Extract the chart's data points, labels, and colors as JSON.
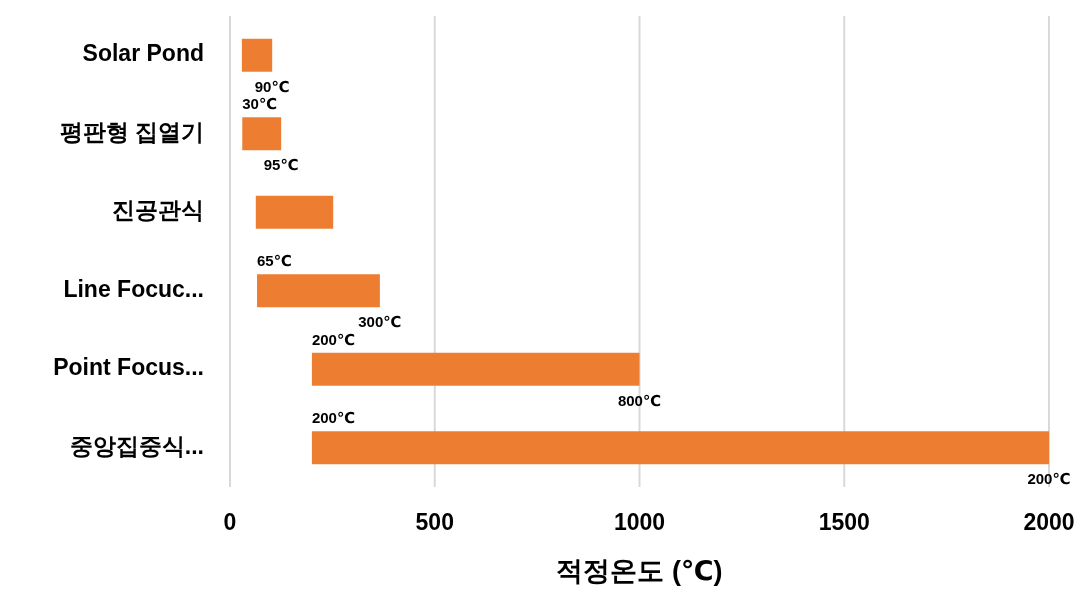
{
  "chart_data": {
    "type": "bar",
    "orientation": "horizontal",
    "xlabel": "적정온도 (℃)",
    "categories": [
      "Solar Pond",
      "평판형 집열기",
      "진공관식",
      "Line Focuc...",
      "Point Focus...",
      "중앙집중식..."
    ],
    "base": [
      29,
      30,
      63,
      66,
      200,
      200
    ],
    "values": [
      74,
      95,
      189,
      300,
      800,
      1800
    ],
    "color": "#ed7d31",
    "xlim": [
      0,
      2000
    ],
    "xticks": [
      0,
      500,
      1000,
      1500,
      2000
    ],
    "grid": "x",
    "annotations": [
      {
        "text": "90℃",
        "x": 103,
        "y": "Solar Pond"
      },
      {
        "text": "30℃",
        "x": 30,
        "y": "평판형 집열기"
      },
      {
        "text": "95℃",
        "x": 125,
        "y": "평판형 집열기"
      },
      {
        "text": "65℃",
        "x": 66,
        "y": "Line Focuc..."
      },
      {
        "text": "300℃",
        "x": 366,
        "y": "Line Focuc..."
      },
      {
        "text": "200℃",
        "x": 200,
        "y": "Point Focus..."
      },
      {
        "text": "800℃",
        "x": 1000,
        "y": "Point Focus..."
      },
      {
        "text": "200℃",
        "x": 200,
        "y": "중앙집중식..."
      },
      {
        "text": "200℃",
        "x": 2000,
        "y": "중앙집중식..."
      }
    ]
  }
}
